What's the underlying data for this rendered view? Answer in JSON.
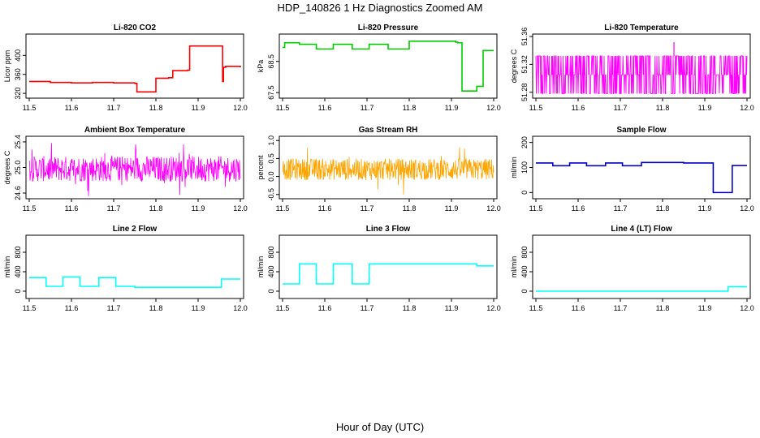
{
  "figure": {
    "title": "HDP_140826  1 Hz Diagnostics Zoomed AM",
    "xlabel": "Hour of Day (UTC)"
  },
  "chart_data": [
    {
      "type": "line",
      "title": "Li-820 CO2",
      "ylabel": "Licor ppm",
      "color": "#ff0000",
      "xlim": [
        11.5,
        12.0
      ],
      "ylim": [
        315,
        440
      ],
      "xticks": [
        "11.5",
        "11.6",
        "11.7",
        "11.8",
        "11.9",
        "12.0"
      ],
      "xtick_values": [
        11.5,
        11.6,
        11.7,
        11.8,
        11.9,
        12.0
      ],
      "yticks": [
        "320",
        "360",
        "400"
      ],
      "ytick_values": [
        320,
        360,
        400
      ],
      "series": [
        {
          "mode": "steps",
          "x": [
            11.5,
            11.55,
            11.6,
            11.65,
            11.7,
            11.75,
            11.755,
            11.8,
            11.83,
            11.84,
            11.875,
            11.88,
            11.955,
            11.958,
            11.96,
            11.965,
            12.0
          ],
          "y": [
            345,
            343,
            342,
            343,
            342,
            341,
            323,
            352,
            353,
            368,
            369,
            420,
            420,
            345,
            375,
            377,
            375
          ]
        }
      ]
    },
    {
      "type": "line",
      "title": "Li-820 Pressure",
      "ylabel": "kPa",
      "color": "#00cc00",
      "xlim": [
        11.5,
        12.0
      ],
      "ylim": [
        67.4,
        69.3
      ],
      "xticks": [
        "11.5",
        "11.6",
        "11.7",
        "11.8",
        "11.9",
        "12.0"
      ],
      "xtick_values": [
        11.5,
        11.6,
        11.7,
        11.8,
        11.9,
        12.0
      ],
      "yticks": [
        "67.5",
        "68.5"
      ],
      "ytick_values": [
        67.5,
        68.5
      ],
      "series": [
        {
          "mode": "steps",
          "x": [
            11.5,
            11.505,
            11.54,
            11.58,
            11.62,
            11.665,
            11.705,
            11.75,
            11.8,
            11.85,
            11.91,
            11.915,
            11.925,
            11.96,
            11.975,
            12.0
          ],
          "y": [
            68.95,
            69.1,
            69.05,
            68.9,
            69.05,
            68.9,
            69.05,
            68.9,
            69.15,
            69.15,
            69.12,
            69.1,
            67.55,
            67.7,
            68.85,
            68.85
          ]
        }
      ]
    },
    {
      "type": "line",
      "title": "Li-820 Temperature",
      "ylabel": "degrees C",
      "color": "#ff00ff",
      "xlim": [
        11.5,
        12.0
      ],
      "ylim": [
        51.275,
        51.36
      ],
      "xticks": [
        "11.5",
        "11.6",
        "11.7",
        "11.8",
        "11.9",
        "12.0"
      ],
      "xtick_values": [
        11.5,
        11.6,
        11.7,
        11.8,
        11.9,
        12.0
      ],
      "yticks": [
        "51.28",
        "51.32",
        "51.36"
      ],
      "ytick_values": [
        51.28,
        51.32,
        51.36
      ],
      "series": [
        {
          "mode": "digital",
          "levels": [
            51.278,
            51.305,
            51.332
          ],
          "spike_x": 11.827,
          "spike_y": 51.352
        }
      ]
    },
    {
      "type": "line",
      "title": "Ambient Box Temperature",
      "ylabel": "degrees C",
      "color": "#ff00ff",
      "xlim": [
        11.5,
        12.0
      ],
      "ylim": [
        24.55,
        25.45
      ],
      "xticks": [
        "11.5",
        "11.6",
        "11.7",
        "11.8",
        "11.9",
        "12.0"
      ],
      "xtick_values": [
        11.5,
        11.6,
        11.7,
        11.8,
        11.9,
        12.0
      ],
      "yticks": [
        "24.6",
        "25.0",
        "25.4"
      ],
      "ytick_values": [
        24.6,
        25.0,
        25.4
      ],
      "series": [
        {
          "mode": "noise",
          "center": 24.98,
          "spread": 0.2,
          "max": 25.42,
          "min": 24.55
        }
      ]
    },
    {
      "type": "line",
      "title": "Gas Stream RH",
      "ylabel": "percent",
      "color": "#ffa500",
      "xlim": [
        11.5,
        12.0
      ],
      "ylim": [
        -0.55,
        1.05
      ],
      "xticks": [
        "11.5",
        "11.6",
        "11.7",
        "11.8",
        "11.9",
        "12.0"
      ],
      "xtick_values": [
        11.5,
        11.6,
        11.7,
        11.8,
        11.9,
        12.0
      ],
      "yticks": [
        "-0.5",
        "0.0",
        "0.5",
        "1.0"
      ],
      "ytick_values": [
        -0.5,
        0.0,
        0.5,
        1.0
      ],
      "series": [
        {
          "mode": "noise",
          "center": 0.2,
          "spread": 0.3,
          "max": 1.0,
          "min": -0.5
        }
      ]
    },
    {
      "type": "line",
      "title": "Sample Flow",
      "ylabel": "ml/min",
      "color": "#0000cc",
      "xlim": [
        11.5,
        12.0
      ],
      "ylim": [
        -15,
        215
      ],
      "xticks": [
        "11.5",
        "11.6",
        "11.7",
        "11.8",
        "11.9",
        "12.0"
      ],
      "xtick_values": [
        11.5,
        11.6,
        11.7,
        11.8,
        11.9,
        12.0
      ],
      "yticks": [
        "0",
        "100",
        "200"
      ],
      "ytick_values": [
        0,
        100,
        200
      ],
      "series": [
        {
          "mode": "steps",
          "x": [
            11.5,
            11.54,
            11.58,
            11.62,
            11.665,
            11.705,
            11.75,
            11.8,
            11.85,
            11.915,
            11.92,
            11.96,
            11.965,
            12.0
          ],
          "y": [
            118,
            107,
            118,
            107,
            118,
            107,
            120,
            120,
            118,
            118,
            0,
            0,
            108,
            108
          ]
        }
      ]
    },
    {
      "type": "line",
      "title": "Line 2 Flow",
      "ylabel": "ml/min",
      "color": "#00ffff",
      "xlim": [
        11.5,
        12.0
      ],
      "ylim": [
        -100,
        1100
      ],
      "xticks": [
        "11.5",
        "11.6",
        "11.7",
        "11.8",
        "11.9",
        "12.0"
      ],
      "xtick_values": [
        11.5,
        11.6,
        11.7,
        11.8,
        11.9,
        12.0
      ],
      "yticks": [
        "0",
        "400",
        "800"
      ],
      "ytick_values": [
        0,
        400,
        800
      ],
      "series": [
        {
          "mode": "steps",
          "x": [
            11.5,
            11.54,
            11.58,
            11.62,
            11.665,
            11.705,
            11.75,
            11.955,
            12.0
          ],
          "y": [
            280,
            100,
            290,
            100,
            280,
            100,
            80,
            250,
            250
          ]
        }
      ]
    },
    {
      "type": "line",
      "title": "Line 3 Flow",
      "ylabel": "ml/min",
      "color": "#00ffff",
      "xlim": [
        11.5,
        12.0
      ],
      "ylim": [
        -100,
        1100
      ],
      "xticks": [
        "11.5",
        "11.6",
        "11.7",
        "11.8",
        "11.9",
        "12.0"
      ],
      "xtick_values": [
        11.5,
        11.6,
        11.7,
        11.8,
        11.9,
        12.0
      ],
      "yticks": [
        "0",
        "400",
        "800"
      ],
      "ytick_values": [
        0,
        400,
        800
      ],
      "series": [
        {
          "mode": "steps",
          "x": [
            11.5,
            11.54,
            11.58,
            11.62,
            11.665,
            11.705,
            11.955,
            11.96,
            12.0
          ],
          "y": [
            150,
            560,
            150,
            560,
            150,
            560,
            560,
            520,
            520
          ]
        }
      ]
    },
    {
      "type": "line",
      "title": "Line 4 (LT) Flow",
      "ylabel": "ml/min",
      "color": "#00ffff",
      "xlim": [
        11.5,
        12.0
      ],
      "ylim": [
        -100,
        1100
      ],
      "xticks": [
        "11.5",
        "11.6",
        "11.7",
        "11.8",
        "11.9",
        "12.0"
      ],
      "xtick_values": [
        11.5,
        11.6,
        11.7,
        11.8,
        11.9,
        12.0
      ],
      "yticks": [
        "0",
        "400",
        "800"
      ],
      "ytick_values": [
        0,
        400,
        800
      ],
      "series": [
        {
          "mode": "steps",
          "x": [
            11.5,
            11.955,
            12.0
          ],
          "y": [
            0,
            90,
            90
          ]
        }
      ]
    }
  ]
}
